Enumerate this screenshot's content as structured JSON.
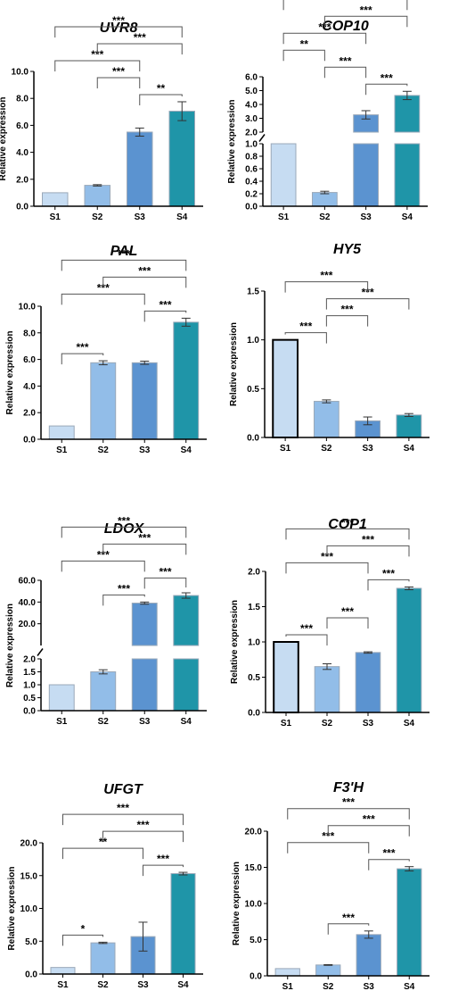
{
  "ylabel": "Relative expression",
  "colors": [
    "#c6dcf2",
    "#92bde8",
    "#5b93d0",
    "#1f95a8"
  ],
  "chart_data": [
    {
      "type": "bar",
      "title": "UVR8",
      "categories": [
        "S1",
        "S2",
        "S3",
        "S4"
      ],
      "values": [
        1.0,
        1.55,
        5.5,
        7.05
      ],
      "errors": [
        0.0,
        0.05,
        0.3,
        0.7
      ],
      "ylim": [
        0,
        10
      ],
      "yticks": [
        0,
        2,
        4,
        6,
        8,
        10
      ],
      "yticklabels": [
        "0.0",
        "2.0",
        "4.0",
        "6.0",
        "8.0",
        "10.0"
      ],
      "comparisons": [
        {
          "from": "S3",
          "to": "S4",
          "label": "**"
        },
        {
          "from": "S2",
          "to": "S3",
          "label": "***"
        },
        {
          "from": "S1",
          "to": "S3",
          "label": "***"
        },
        {
          "from": "S2",
          "to": "S4",
          "label": "***"
        },
        {
          "from": "S1",
          "to": "S4",
          "label": "***"
        }
      ]
    },
    {
      "type": "bar",
      "title": "COP10",
      "categories": [
        "S1",
        "S2",
        "S3",
        "S4"
      ],
      "values": [
        1.0,
        0.22,
        3.25,
        4.65
      ],
      "errors": [
        0.0,
        0.02,
        0.3,
        0.3
      ],
      "broken_axis": true,
      "ylim_lower": [
        0,
        1.0
      ],
      "ylim_upper": [
        2.0,
        6.0
      ],
      "yticks_lower": [
        0,
        0.2,
        0.4,
        0.6,
        0.8,
        1.0
      ],
      "yticklabels_lower": [
        "0.0",
        "0.2",
        "0.4",
        "0.6",
        "0.8",
        "1.0"
      ],
      "yticks_upper": [
        2,
        3,
        4,
        5,
        6
      ],
      "yticklabels_upper": [
        "2.0",
        "3.0",
        "4.0",
        "5.0",
        "6.0"
      ],
      "comparisons": [
        {
          "from": "S3",
          "to": "S4",
          "label": "***"
        },
        {
          "from": "S2",
          "to": "S3",
          "label": "***"
        },
        {
          "from": "S1",
          "to": "S3",
          "label": "***"
        },
        {
          "from": "S1",
          "to": "S4",
          "label": "***"
        },
        {
          "from": "S1",
          "to": "S2",
          "label": "**"
        },
        {
          "from": "S2",
          "to": "S4",
          "label": "***"
        }
      ]
    },
    {
      "type": "bar",
      "title": "PAL",
      "categories": [
        "S1",
        "S2",
        "S3",
        "S4"
      ],
      "values": [
        1.0,
        5.75,
        5.75,
        8.8
      ],
      "errors": [
        0.0,
        0.15,
        0.12,
        0.3
      ],
      "ylim": [
        0,
        10
      ],
      "yticks": [
        0,
        2,
        4,
        6,
        8,
        10
      ],
      "yticklabels": [
        "0.0",
        "2.0",
        "4.0",
        "6.0",
        "8.0",
        "10.0"
      ],
      "comparisons": [
        {
          "from": "S1",
          "to": "S2",
          "label": "***"
        },
        {
          "from": "S3",
          "to": "S4",
          "label": "***"
        },
        {
          "from": "S1",
          "to": "S3",
          "label": "***"
        },
        {
          "from": "S2",
          "to": "S4",
          "label": "***"
        },
        {
          "from": "S1",
          "to": "S4",
          "label": "***"
        }
      ]
    },
    {
      "type": "bar",
      "title": "HY5",
      "categories": [
        "S1",
        "S2",
        "S3",
        "S4"
      ],
      "values": [
        1.0,
        0.37,
        0.17,
        0.23
      ],
      "errors": [
        0.0,
        0.015,
        0.04,
        0.015
      ],
      "ylim": [
        0,
        1.5
      ],
      "yticks": [
        0,
        0.5,
        1.0,
        1.5
      ],
      "yticklabels": [
        "0.0",
        "0.5",
        "1.0",
        "1.5"
      ],
      "comparisons": [
        {
          "from": "S1",
          "to": "S2",
          "label": "***"
        },
        {
          "from": "S2",
          "to": "S3",
          "label": "***"
        },
        {
          "from": "S2",
          "to": "S4",
          "label": "***"
        },
        {
          "from": "S1",
          "to": "S3",
          "label": "***"
        }
      ]
    },
    {
      "type": "bar",
      "title": "LDOX",
      "categories": [
        "S1",
        "S2",
        "S3",
        "S4"
      ],
      "values": [
        1.0,
        1.5,
        39.0,
        46.0
      ],
      "errors": [
        0.0,
        0.08,
        1.0,
        2.5
      ],
      "broken_axis": true,
      "ylim_lower": [
        0,
        2.0
      ],
      "ylim_upper": [
        0,
        60
      ],
      "yticks_lower": [
        0,
        0.5,
        1.0,
        1.5,
        2.0
      ],
      "yticklabels_lower": [
        "0.0",
        "0.5",
        "1.0",
        "1.5",
        "2.0"
      ],
      "yticks_upper": [
        20,
        40,
        60
      ],
      "yticklabels_upper": [
        "20.0",
        "40.0",
        "60.0"
      ],
      "comparisons": [
        {
          "from": "S2",
          "to": "S3",
          "label": "***"
        },
        {
          "from": "S3",
          "to": "S4",
          "label": "***"
        },
        {
          "from": "S1",
          "to": "S3",
          "label": "***"
        },
        {
          "from": "S2",
          "to": "S4",
          "label": "***"
        },
        {
          "from": "S1",
          "to": "S4",
          "label": "***"
        }
      ]
    },
    {
      "type": "bar",
      "title": "COP1",
      "categories": [
        "S1",
        "S2",
        "S3",
        "S4"
      ],
      "values": [
        1.0,
        0.65,
        0.85,
        1.76
      ],
      "errors": [
        0.0,
        0.04,
        0.01,
        0.02
      ],
      "ylim": [
        0,
        2.0
      ],
      "yticks": [
        0,
        0.5,
        1.0,
        1.5,
        2.0
      ],
      "yticklabels": [
        "0.0",
        "0.5",
        "1.0",
        "1.5",
        "2.0"
      ],
      "comparisons": [
        {
          "from": "S1",
          "to": "S2",
          "label": "***"
        },
        {
          "from": "S2",
          "to": "S3",
          "label": "***"
        },
        {
          "from": "S3",
          "to": "S4",
          "label": "***"
        },
        {
          "from": "S1",
          "to": "S3",
          "label": "***"
        },
        {
          "from": "S2",
          "to": "S4",
          "label": "***"
        },
        {
          "from": "S1",
          "to": "S4",
          "label": "***"
        }
      ]
    },
    {
      "type": "bar",
      "title": "UFGT",
      "categories": [
        "S1",
        "S2",
        "S3",
        "S4"
      ],
      "values": [
        1.0,
        4.75,
        5.7,
        15.3
      ],
      "errors": [
        0.0,
        0.1,
        2.2,
        0.2
      ],
      "ylim": [
        0,
        20
      ],
      "yticks": [
        0,
        5,
        10,
        15,
        20
      ],
      "yticklabels": [
        "0.0",
        "5.0",
        "10.0",
        "15.0",
        "20.0"
      ],
      "comparisons": [
        {
          "from": "S1",
          "to": "S2",
          "label": "*"
        },
        {
          "from": "S3",
          "to": "S4",
          "label": "***"
        },
        {
          "from": "S1",
          "to": "S3",
          "label": "**"
        },
        {
          "from": "S2",
          "to": "S4",
          "label": "***"
        },
        {
          "from": "S1",
          "to": "S4",
          "label": "***"
        }
      ]
    },
    {
      "type": "bar",
      "title": "F3'H",
      "categories": [
        "S1",
        "S2",
        "S3",
        "S4"
      ],
      "values": [
        1.0,
        1.5,
        5.7,
        14.8
      ],
      "errors": [
        0.0,
        0.05,
        0.5,
        0.3
      ],
      "ylim": [
        0,
        20
      ],
      "yticks": [
        0,
        5,
        10,
        15,
        20
      ],
      "yticklabels": [
        "0.0",
        "5.0",
        "10.0",
        "15.0",
        "20.0"
      ],
      "comparisons": [
        {
          "from": "S2",
          "to": "S3",
          "label": "***"
        },
        {
          "from": "S1",
          "to": "S3",
          "label": "***"
        },
        {
          "from": "S3",
          "to": "S4",
          "label": "***"
        },
        {
          "from": "S2",
          "to": "S4",
          "label": "***"
        },
        {
          "from": "S1",
          "to": "S4",
          "label": "***"
        }
      ]
    }
  ]
}
